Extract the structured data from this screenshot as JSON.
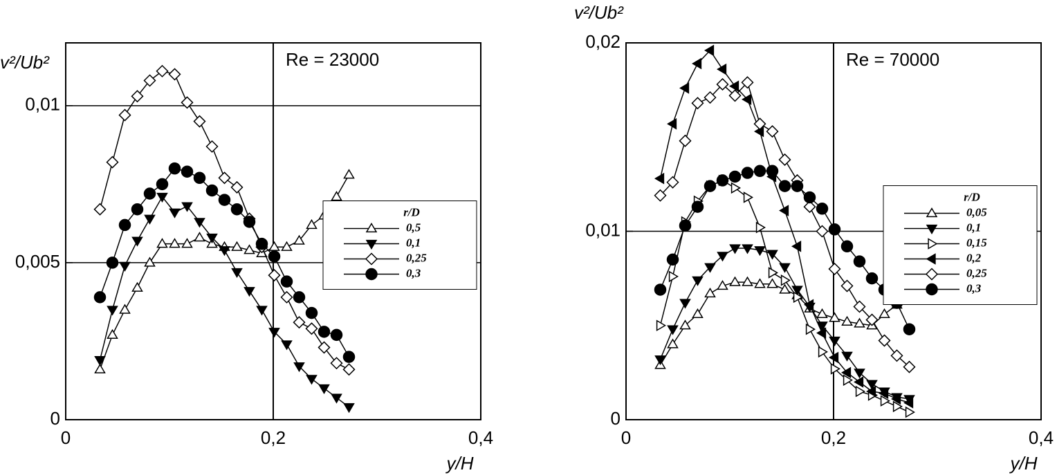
{
  "chart_data": [
    {
      "type": "line",
      "ylabel": "v²/Ub²",
      "xlabel": "y/H",
      "annotation": "Re = 23000",
      "legend_title": "r/D",
      "legend": "center right",
      "grid": true,
      "xlim": [
        0,
        0.4
      ],
      "ylim": [
        0,
        0.012
      ],
      "xticks": [
        0,
        {
          "value": 0.2,
          "label": "0,2"
        },
        {
          "value": 0.4,
          "label": "0,4"
        }
      ],
      "yticks": [
        0,
        {
          "value": 0.005,
          "label": "0,005"
        },
        {
          "value": 0.01,
          "label": "0,01"
        }
      ],
      "x": [
        0.033,
        0.045,
        0.057,
        0.069,
        0.081,
        0.093,
        0.105,
        0.117,
        0.129,
        0.141,
        0.153,
        0.165,
        0.177,
        0.189,
        0.201,
        0.213,
        0.225,
        0.237,
        0.249,
        0.261,
        0.273
      ],
      "series": [
        {
          "name": "0,5",
          "color": "#000000",
          "marker": "triangle-up",
          "filled": false,
          "values": [
            0.0016,
            0.0027,
            0.0035,
            0.0042,
            0.005,
            0.0056,
            0.0056,
            0.0056,
            0.0058,
            0.0056,
            0.0055,
            0.0055,
            0.0054,
            0.0053,
            0.0055,
            0.0055,
            0.0057,
            0.0062,
            0.0065,
            0.0071,
            0.0078
          ]
        },
        {
          "name": "0,1",
          "color": "#000000",
          "marker": "triangle-down",
          "filled": true,
          "values": [
            0.0019,
            0.0035,
            0.0049,
            0.0057,
            0.0064,
            0.0071,
            0.0066,
            0.0068,
            0.0063,
            0.0058,
            0.0054,
            0.0047,
            0.0041,
            0.0035,
            0.0028,
            0.0024,
            0.0017,
            0.0013,
            0.001,
            0.0007,
            0.0004
          ]
        },
        {
          "name": "0,25",
          "color": "#000000",
          "marker": "diamond",
          "filled": false,
          "values": [
            0.0067,
            0.0082,
            0.0097,
            0.0103,
            0.0108,
            0.0111,
            0.011,
            0.0101,
            0.0095,
            0.0087,
            0.0077,
            0.0074,
            0.0064,
            0.0055,
            0.0046,
            0.0039,
            0.0031,
            0.0029,
            0.0023,
            0.0018,
            0.0016
          ]
        },
        {
          "name": "0,3",
          "color": "#000000",
          "marker": "circle",
          "filled": true,
          "values": [
            0.0039,
            0.005,
            0.0062,
            0.0067,
            0.0072,
            0.0075,
            0.008,
            0.0079,
            0.0077,
            0.0073,
            0.007,
            0.0067,
            0.0063,
            0.0056,
            0.0052,
            0.0044,
            0.0039,
            0.0034,
            0.0028,
            0.0027,
            0.002
          ]
        }
      ]
    },
    {
      "type": "line",
      "ylabel": "v²/Ub²",
      "xlabel": "y/H",
      "annotation": "Re = 70000",
      "legend_title": "r/D",
      "legend": "center right",
      "grid": true,
      "xlim": [
        0,
        0.4
      ],
      "ylim": [
        0,
        0.02
      ],
      "xticks": [
        0,
        {
          "value": 0.2,
          "label": "0,2"
        },
        {
          "value": 0.4,
          "label": "0,4"
        }
      ],
      "yticks": [
        0,
        {
          "value": 0.01,
          "label": "0,01"
        },
        {
          "value": 0.02,
          "label": "0,02"
        }
      ],
      "x": [
        0.033,
        0.045,
        0.057,
        0.069,
        0.081,
        0.093,
        0.105,
        0.117,
        0.129,
        0.141,
        0.153,
        0.165,
        0.177,
        0.189,
        0.201,
        0.213,
        0.225,
        0.237,
        0.249,
        0.261,
        0.273
      ],
      "series": [
        {
          "name": "0,05",
          "color": "#000000",
          "marker": "triangle-up",
          "filled": false,
          "values": [
            0.0029,
            0.004,
            0.005,
            0.0056,
            0.0067,
            0.0071,
            0.0073,
            0.0073,
            0.0072,
            0.0072,
            0.0069,
            0.0066,
            0.0059,
            0.0056,
            0.0054,
            0.0052,
            0.0051,
            0.005,
            0.0056,
            0.0061,
            0.0068
          ]
        },
        {
          "name": "0,1",
          "color": "#000000",
          "marker": "triangle-down",
          "filled": true,
          "values": [
            0.0032,
            0.0048,
            0.0062,
            0.0074,
            0.0081,
            0.0087,
            0.0091,
            0.0091,
            0.009,
            0.0088,
            0.0081,
            0.0069,
            0.006,
            0.005,
            0.0042,
            0.0034,
            0.0025,
            0.0019,
            0.0015,
            0.0012,
            0.0011
          ]
        },
        {
          "name": "0,15",
          "color": "#000000",
          "marker": "triangle-right",
          "filled": false,
          "values": [
            0.005,
            0.0076,
            0.0105,
            0.0116,
            0.0124,
            0.0127,
            0.0123,
            0.0118,
            0.0102,
            0.0078,
            0.0074,
            0.0065,
            0.0048,
            0.0036,
            0.0027,
            0.0021,
            0.0015,
            0.0013,
            0.001,
            0.0007,
            0.0004
          ]
        },
        {
          "name": "0,2",
          "color": "#000000",
          "marker": "triangle-left",
          "filled": true,
          "values": [
            0.0128,
            0.0157,
            0.0176,
            0.0189,
            0.0196,
            0.0186,
            0.0177,
            0.017,
            0.0153,
            0.0129,
            0.0111,
            0.0092,
            0.0061,
            0.0046,
            0.0033,
            0.0025,
            0.002,
            0.0015,
            0.0014,
            0.0011,
            0.0009
          ]
        },
        {
          "name": "0,25",
          "color": "#000000",
          "marker": "diamond",
          "filled": false,
          "values": [
            0.0119,
            0.0126,
            0.0148,
            0.0168,
            0.0171,
            0.0178,
            0.0172,
            0.0179,
            0.0157,
            0.0153,
            0.0138,
            0.0127,
            0.0113,
            0.01,
            0.008,
            0.0071,
            0.006,
            0.0053,
            0.0042,
            0.0034,
            0.0028
          ]
        },
        {
          "name": "0,3",
          "color": "#000000",
          "marker": "circle",
          "filled": true,
          "values": [
            0.0069,
            0.0085,
            0.0103,
            0.0113,
            0.0124,
            0.0127,
            0.0129,
            0.0131,
            0.0132,
            0.0132,
            0.0124,
            0.0124,
            0.0118,
            0.0112,
            0.0101,
            0.0092,
            0.0084,
            0.0075,
            0.0069,
            0.0062,
            0.0048
          ]
        }
      ]
    }
  ]
}
